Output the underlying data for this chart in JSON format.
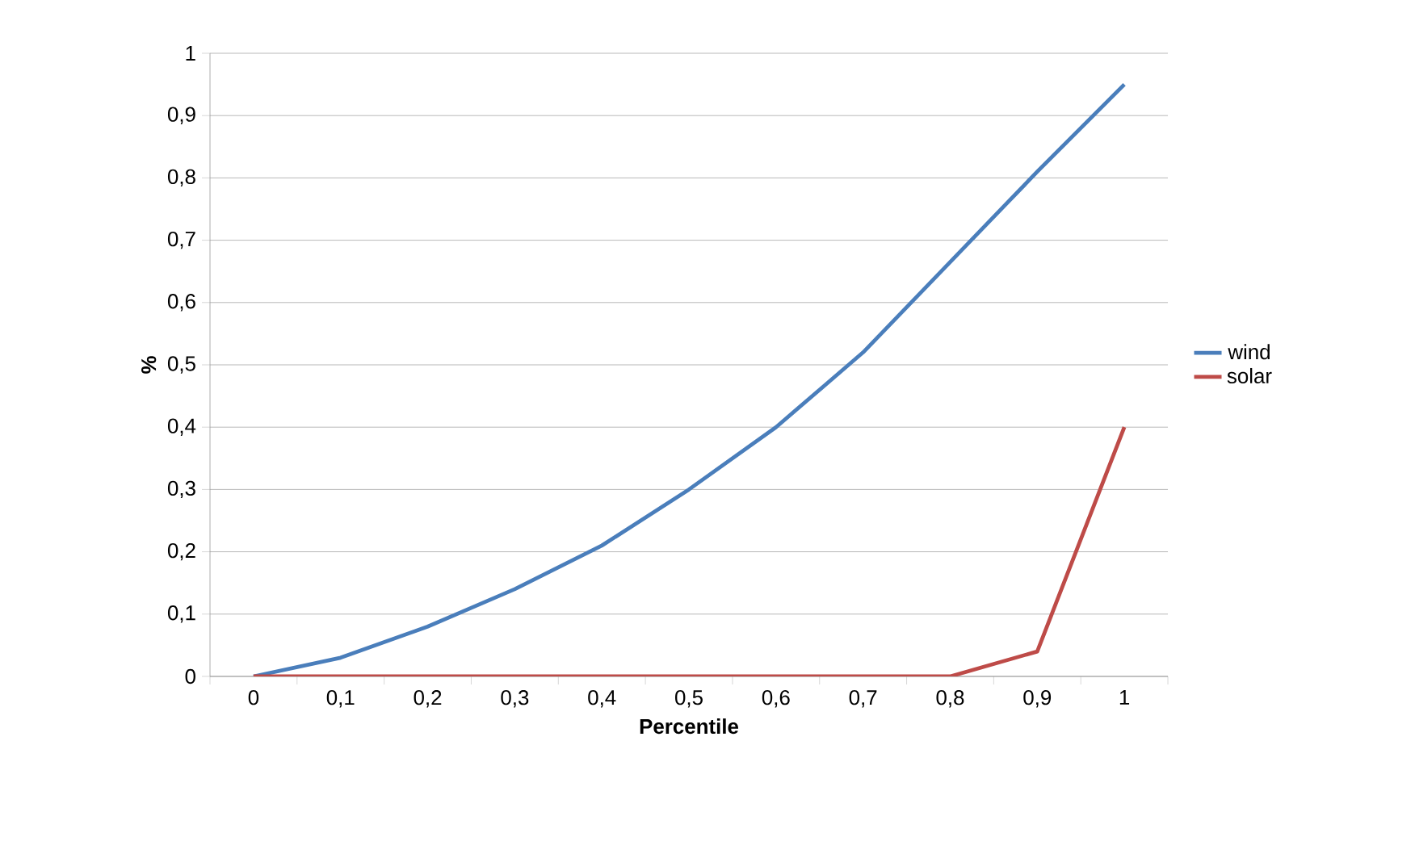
{
  "chart_data": {
    "type": "line",
    "xlabel": "Percentile",
    "ylabel": "%",
    "categories": [
      "0",
      "0,1",
      "0,2",
      "0,3",
      "0,4",
      "0,5",
      "0,6",
      "0,7",
      "0,8",
      "0,9",
      "1"
    ],
    "series": [
      {
        "name": "wind",
        "color": "#4a7ebb",
        "values": [
          0,
          0.03,
          0.08,
          0.14,
          0.21,
          0.3,
          0.4,
          0.52,
          0.665,
          0.81,
          0.95
        ]
      },
      {
        "name": "solar",
        "color": "#be4b48",
        "values": [
          0,
          0,
          0,
          0,
          0,
          0,
          0,
          0,
          0,
          0.04,
          0.4
        ]
      }
    ],
    "ylim": [
      0,
      1
    ],
    "yticks": [
      0,
      {
        "value": 0.1,
        "label": "0,1"
      },
      {
        "value": 0.2,
        "label": "0,2"
      },
      {
        "value": 0.3,
        "label": "0,3"
      },
      {
        "value": 0.4,
        "label": "0,4"
      },
      {
        "value": 0.5,
        "label": "0,5"
      },
      {
        "value": 0.6,
        "label": "0,6"
      },
      {
        "value": 0.7,
        "label": "0,7"
      },
      {
        "value": 0.8,
        "label": "0,8"
      },
      {
        "value": 0.9,
        "label": "0,9"
      },
      1
    ],
    "grid": "y",
    "legend": "right",
    "marker": "none",
    "line_style": "solid"
  }
}
